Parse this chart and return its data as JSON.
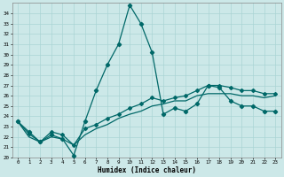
{
  "xlabel": "Humidex (Indice chaleur)",
  "background_color": "#cce8e8",
  "line_color": "#006868",
  "grid_color": "#aad4d4",
  "xlim": [
    -0.5,
    23.5
  ],
  "ylim": [
    20,
    35
  ],
  "yticks": [
    20,
    21,
    22,
    23,
    24,
    25,
    26,
    27,
    28,
    29,
    30,
    31,
    32,
    33,
    34
  ],
  "xticks": [
    0,
    1,
    2,
    3,
    4,
    5,
    6,
    7,
    8,
    9,
    10,
    11,
    12,
    13,
    14,
    15,
    16,
    17,
    18,
    19,
    20,
    21,
    22,
    23
  ],
  "x": [
    0,
    1,
    2,
    3,
    4,
    5,
    6,
    7,
    8,
    9,
    10,
    11,
    12,
    13,
    14,
    15,
    16,
    17,
    18,
    19,
    20,
    21,
    22,
    23
  ],
  "line1": [
    23.5,
    22.5,
    21.5,
    22.2,
    21.8,
    20.2,
    23.5,
    26.5,
    29.0,
    31.0,
    34.8,
    33.0,
    30.2,
    24.2,
    24.8,
    24.5,
    25.2,
    27.0,
    26.8,
    25.5,
    25.0,
    25.0,
    24.5,
    24.5
  ],
  "line2": [
    23.5,
    22.3,
    21.5,
    22.5,
    22.2,
    21.2,
    22.8,
    23.2,
    23.8,
    24.2,
    24.8,
    25.2,
    25.8,
    25.5,
    25.8,
    26.0,
    26.5,
    27.0,
    27.0,
    26.8,
    26.5,
    26.5,
    26.2,
    26.2
  ],
  "line3": [
    23.5,
    22.0,
    21.5,
    22.0,
    21.8,
    21.2,
    22.2,
    22.8,
    23.2,
    23.8,
    24.2,
    24.5,
    25.0,
    25.2,
    25.5,
    25.5,
    26.0,
    26.2,
    26.2,
    26.2,
    26.0,
    26.0,
    25.8,
    26.0
  ]
}
